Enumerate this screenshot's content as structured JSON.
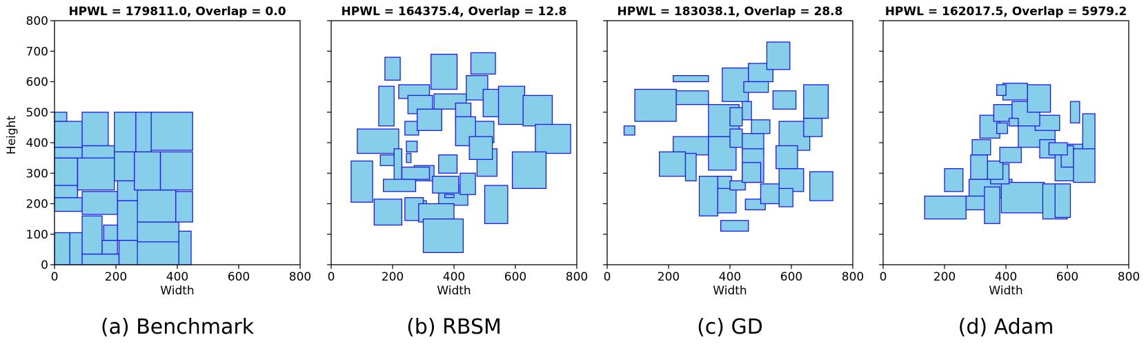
{
  "figure": {
    "ylabel": "Height",
    "xlabel": "Width"
  },
  "colors": {
    "block_fill": "#87ceeb",
    "block_edge": "#1a1aee",
    "axes": "#000000"
  },
  "chart_data": [
    {
      "type": "rectangles",
      "title": "HPWL = 179811.0, Overlap = 0.0",
      "caption": "(a) Benchmark",
      "xlabel": "Width",
      "ylabel": "Height",
      "xlim": [
        0,
        800
      ],
      "ylim": [
        0,
        800
      ],
      "xticks": [
        0,
        200,
        400,
        600,
        800
      ],
      "yticks": [
        0,
        100,
        200,
        300,
        400,
        500,
        600,
        700,
        800
      ],
      "rects": [
        [
          0,
          0,
          50,
          105
        ],
        [
          50,
          0,
          90,
          105
        ],
        [
          90,
          0,
          210,
          35
        ],
        [
          90,
          35,
          155,
          160
        ],
        [
          155,
          35,
          205,
          80
        ],
        [
          160,
          80,
          205,
          130
        ],
        [
          210,
          0,
          270,
          80
        ],
        [
          270,
          0,
          405,
          80
        ],
        [
          405,
          0,
          445,
          110
        ],
        [
          205,
          80,
          270,
          210
        ],
        [
          270,
          75,
          405,
          140
        ],
        [
          0,
          175,
          90,
          220
        ],
        [
          90,
          165,
          205,
          240
        ],
        [
          205,
          210,
          270,
          275
        ],
        [
          0,
          220,
          75,
          260
        ],
        [
          270,
          140,
          395,
          245
        ],
        [
          395,
          140,
          450,
          240
        ],
        [
          0,
          260,
          75,
          350
        ],
        [
          75,
          245,
          195,
          355
        ],
        [
          195,
          275,
          260,
          370
        ],
        [
          260,
          245,
          345,
          370
        ],
        [
          345,
          245,
          450,
          370
        ],
        [
          0,
          350,
          90,
          385
        ],
        [
          90,
          350,
          195,
          390
        ],
        [
          0,
          385,
          90,
          470
        ],
        [
          90,
          390,
          175,
          500
        ],
        [
          195,
          370,
          265,
          500
        ],
        [
          265,
          370,
          315,
          500
        ],
        [
          315,
          375,
          450,
          500
        ],
        [
          0,
          470,
          40,
          500
        ]
      ]
    },
    {
      "type": "rectangles",
      "title": "HPWL = 164375.4, Overlap = 12.8",
      "caption": "(b) RBSM",
      "xlabel": "Width",
      "ylabel": "",
      "xlim": [
        0,
        800
      ],
      "ylim": [
        0,
        800
      ],
      "xticks": [
        0,
        200,
        400,
        600,
        800
      ],
      "yticks": [
        0,
        100,
        200,
        300,
        400,
        500,
        600,
        700,
        800
      ],
      "rects": [
        [
          65,
          205,
          135,
          340
        ],
        [
          140,
          130,
          230,
          215
        ],
        [
          85,
          365,
          220,
          445
        ],
        [
          160,
          325,
          205,
          360
        ],
        [
          205,
          255,
          230,
          380
        ],
        [
          245,
          370,
          280,
          405
        ],
        [
          175,
          605,
          225,
          680
        ],
        [
          155,
          455,
          205,
          585
        ],
        [
          220,
          545,
          320,
          590
        ],
        [
          250,
          495,
          330,
          555
        ],
        [
          275,
          185,
          310,
          210
        ],
        [
          270,
          275,
          335,
          325
        ],
        [
          245,
          335,
          260,
          365
        ],
        [
          325,
          575,
          410,
          690
        ],
        [
          335,
          510,
          440,
          560
        ],
        [
          405,
          460,
          455,
          530
        ],
        [
          440,
          540,
          510,
          620
        ],
        [
          455,
          625,
          535,
          695
        ],
        [
          475,
          290,
          540,
          380
        ],
        [
          495,
          485,
          570,
          575
        ],
        [
          545,
          460,
          630,
          585
        ],
        [
          625,
          455,
          720,
          555
        ],
        [
          665,
          365,
          780,
          460
        ],
        [
          240,
          425,
          285,
          470
        ],
        [
          280,
          440,
          360,
          510
        ],
        [
          350,
          195,
          445,
          260
        ],
        [
          350,
          300,
          410,
          360
        ],
        [
          405,
          390,
          470,
          485
        ],
        [
          470,
          400,
          530,
          470
        ],
        [
          170,
          240,
          275,
          280
        ],
        [
          230,
          280,
          320,
          320
        ],
        [
          240,
          145,
          300,
          220
        ],
        [
          285,
          140,
          400,
          200
        ],
        [
          300,
          40,
          430,
          150
        ],
        [
          330,
          235,
          415,
          290
        ],
        [
          370,
          220,
          400,
          230
        ],
        [
          420,
          230,
          470,
          300
        ],
        [
          500,
          135,
          575,
          260
        ],
        [
          590,
          250,
          700,
          370
        ],
        [
          450,
          345,
          525,
          420
        ]
      ]
    },
    {
      "type": "rectangles",
      "title": "HPWL = 183038.1, Overlap = 28.8",
      "caption": "(c) GD",
      "xlabel": "Width",
      "ylabel": "",
      "xlim": [
        0,
        800
      ],
      "ylim": [
        0,
        800
      ],
      "xticks": [
        0,
        200,
        400,
        600,
        800
      ],
      "yticks": [
        0,
        100,
        200,
        300,
        400,
        500,
        600,
        700,
        800
      ],
      "rects": [
        [
          55,
          425,
          90,
          455
        ],
        [
          90,
          470,
          225,
          575
        ],
        [
          215,
          360,
          330,
          420
        ],
        [
          170,
          290,
          255,
          370
        ],
        [
          255,
          275,
          290,
          365
        ],
        [
          330,
          310,
          420,
          420
        ],
        [
          330,
          420,
          430,
          525
        ],
        [
          225,
          525,
          330,
          570
        ],
        [
          215,
          600,
          330,
          620
        ],
        [
          375,
          535,
          460,
          645
        ],
        [
          460,
          600,
          540,
          660
        ],
        [
          520,
          640,
          595,
          730
        ],
        [
          445,
          565,
          525,
          600
        ],
        [
          540,
          510,
          615,
          570
        ],
        [
          560,
          375,
          660,
          470
        ],
        [
          440,
          360,
          510,
          430
        ],
        [
          470,
          430,
          530,
          475
        ],
        [
          440,
          475,
          470,
          535
        ],
        [
          400,
          455,
          440,
          515
        ],
        [
          400,
          385,
          440,
          445
        ],
        [
          440,
          270,
          510,
          380
        ],
        [
          350,
          220,
          405,
          290
        ],
        [
          300,
          160,
          360,
          290
        ],
        [
          360,
          170,
          420,
          250
        ],
        [
          370,
          110,
          460,
          145
        ],
        [
          400,
          245,
          450,
          275
        ],
        [
          440,
          270,
          500,
          335
        ],
        [
          450,
          180,
          515,
          215
        ],
        [
          500,
          200,
          560,
          265
        ],
        [
          560,
          240,
          640,
          315
        ],
        [
          550,
          315,
          620,
          390
        ],
        [
          560,
          190,
          605,
          250
        ],
        [
          660,
          210,
          735,
          305
        ],
        [
          640,
          480,
          720,
          590
        ],
        [
          640,
          420,
          700,
          480
        ]
      ]
    },
    {
      "type": "rectangles",
      "title": "HPWL = 162017.5, Overlap = 5979.2",
      "caption": "(d) Adam",
      "xlabel": "Width",
      "ylabel": "",
      "xlim": [
        0,
        800
      ],
      "ylim": [
        0,
        800
      ],
      "xticks": [
        0,
        200,
        400,
        600,
        800
      ],
      "yticks": [
        0,
        100,
        200,
        300,
        400,
        500,
        600,
        700,
        800
      ],
      "rects": [
        [
          135,
          150,
          270,
          225
        ],
        [
          200,
          240,
          260,
          315
        ],
        [
          280,
          220,
          420,
          280
        ],
        [
          270,
          180,
          335,
          225
        ],
        [
          330,
          135,
          380,
          255
        ],
        [
          385,
          170,
          525,
          270
        ],
        [
          520,
          150,
          600,
          265
        ],
        [
          560,
          155,
          610,
          265
        ],
        [
          350,
          265,
          410,
          330
        ],
        [
          285,
          280,
          340,
          360
        ],
        [
          340,
          280,
          390,
          340
        ],
        [
          290,
          360,
          350,
          410
        ],
        [
          315,
          415,
          380,
          490
        ],
        [
          370,
          430,
          405,
          465
        ],
        [
          360,
          470,
          440,
          525
        ],
        [
          380,
          335,
          450,
          385
        ],
        [
          440,
          385,
          560,
          465
        ],
        [
          495,
          440,
          575,
          490
        ],
        [
          510,
          350,
          560,
          410
        ],
        [
          560,
          275,
          650,
          395
        ],
        [
          580,
          320,
          620,
          390
        ],
        [
          620,
          270,
          690,
          380
        ],
        [
          650,
          380,
          690,
          495
        ],
        [
          610,
          465,
          640,
          535
        ],
        [
          420,
          455,
          510,
          535
        ],
        [
          470,
          500,
          545,
          590
        ],
        [
          390,
          540,
          470,
          595
        ],
        [
          370,
          555,
          400,
          590
        ],
        [
          410,
          455,
          440,
          480
        ],
        [
          540,
          360,
          600,
          400
        ]
      ]
    }
  ]
}
